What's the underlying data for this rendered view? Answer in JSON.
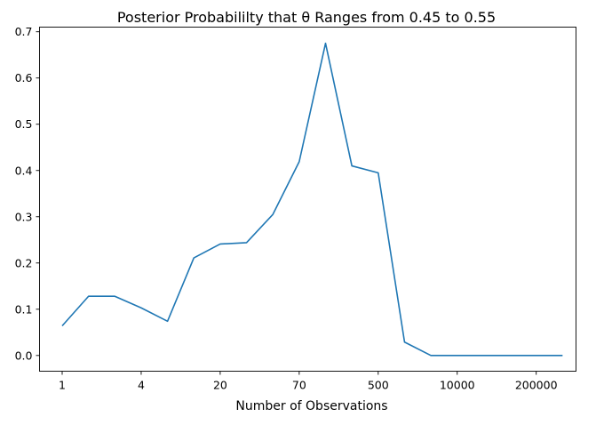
{
  "chart_data": {
    "type": "line",
    "title": "Posterior Probabililty that θ Ranges from 0.45 to 0.55",
    "xlabel": "Number of Observations",
    "ylabel": "",
    "x_ticks": [
      "1",
      "4",
      "20",
      "70",
      "500",
      "10000",
      "200000"
    ],
    "y_ticks": [
      "0.0",
      "0.1",
      "0.2",
      "0.3",
      "0.4",
      "0.5",
      "0.6",
      "0.7"
    ],
    "ylim": [
      -0.034,
      0.71
    ],
    "grid": false,
    "series": [
      {
        "color": "#1f77b4",
        "values": [
          0.064,
          0.128,
          0.128,
          0.103,
          0.074,
          0.211,
          0.241,
          0.244,
          0.305,
          0.419,
          0.675,
          0.41,
          0.395,
          0.029,
          0.0,
          0.0,
          0.0,
          0.0,
          0.0,
          0.0
        ]
      }
    ]
  }
}
